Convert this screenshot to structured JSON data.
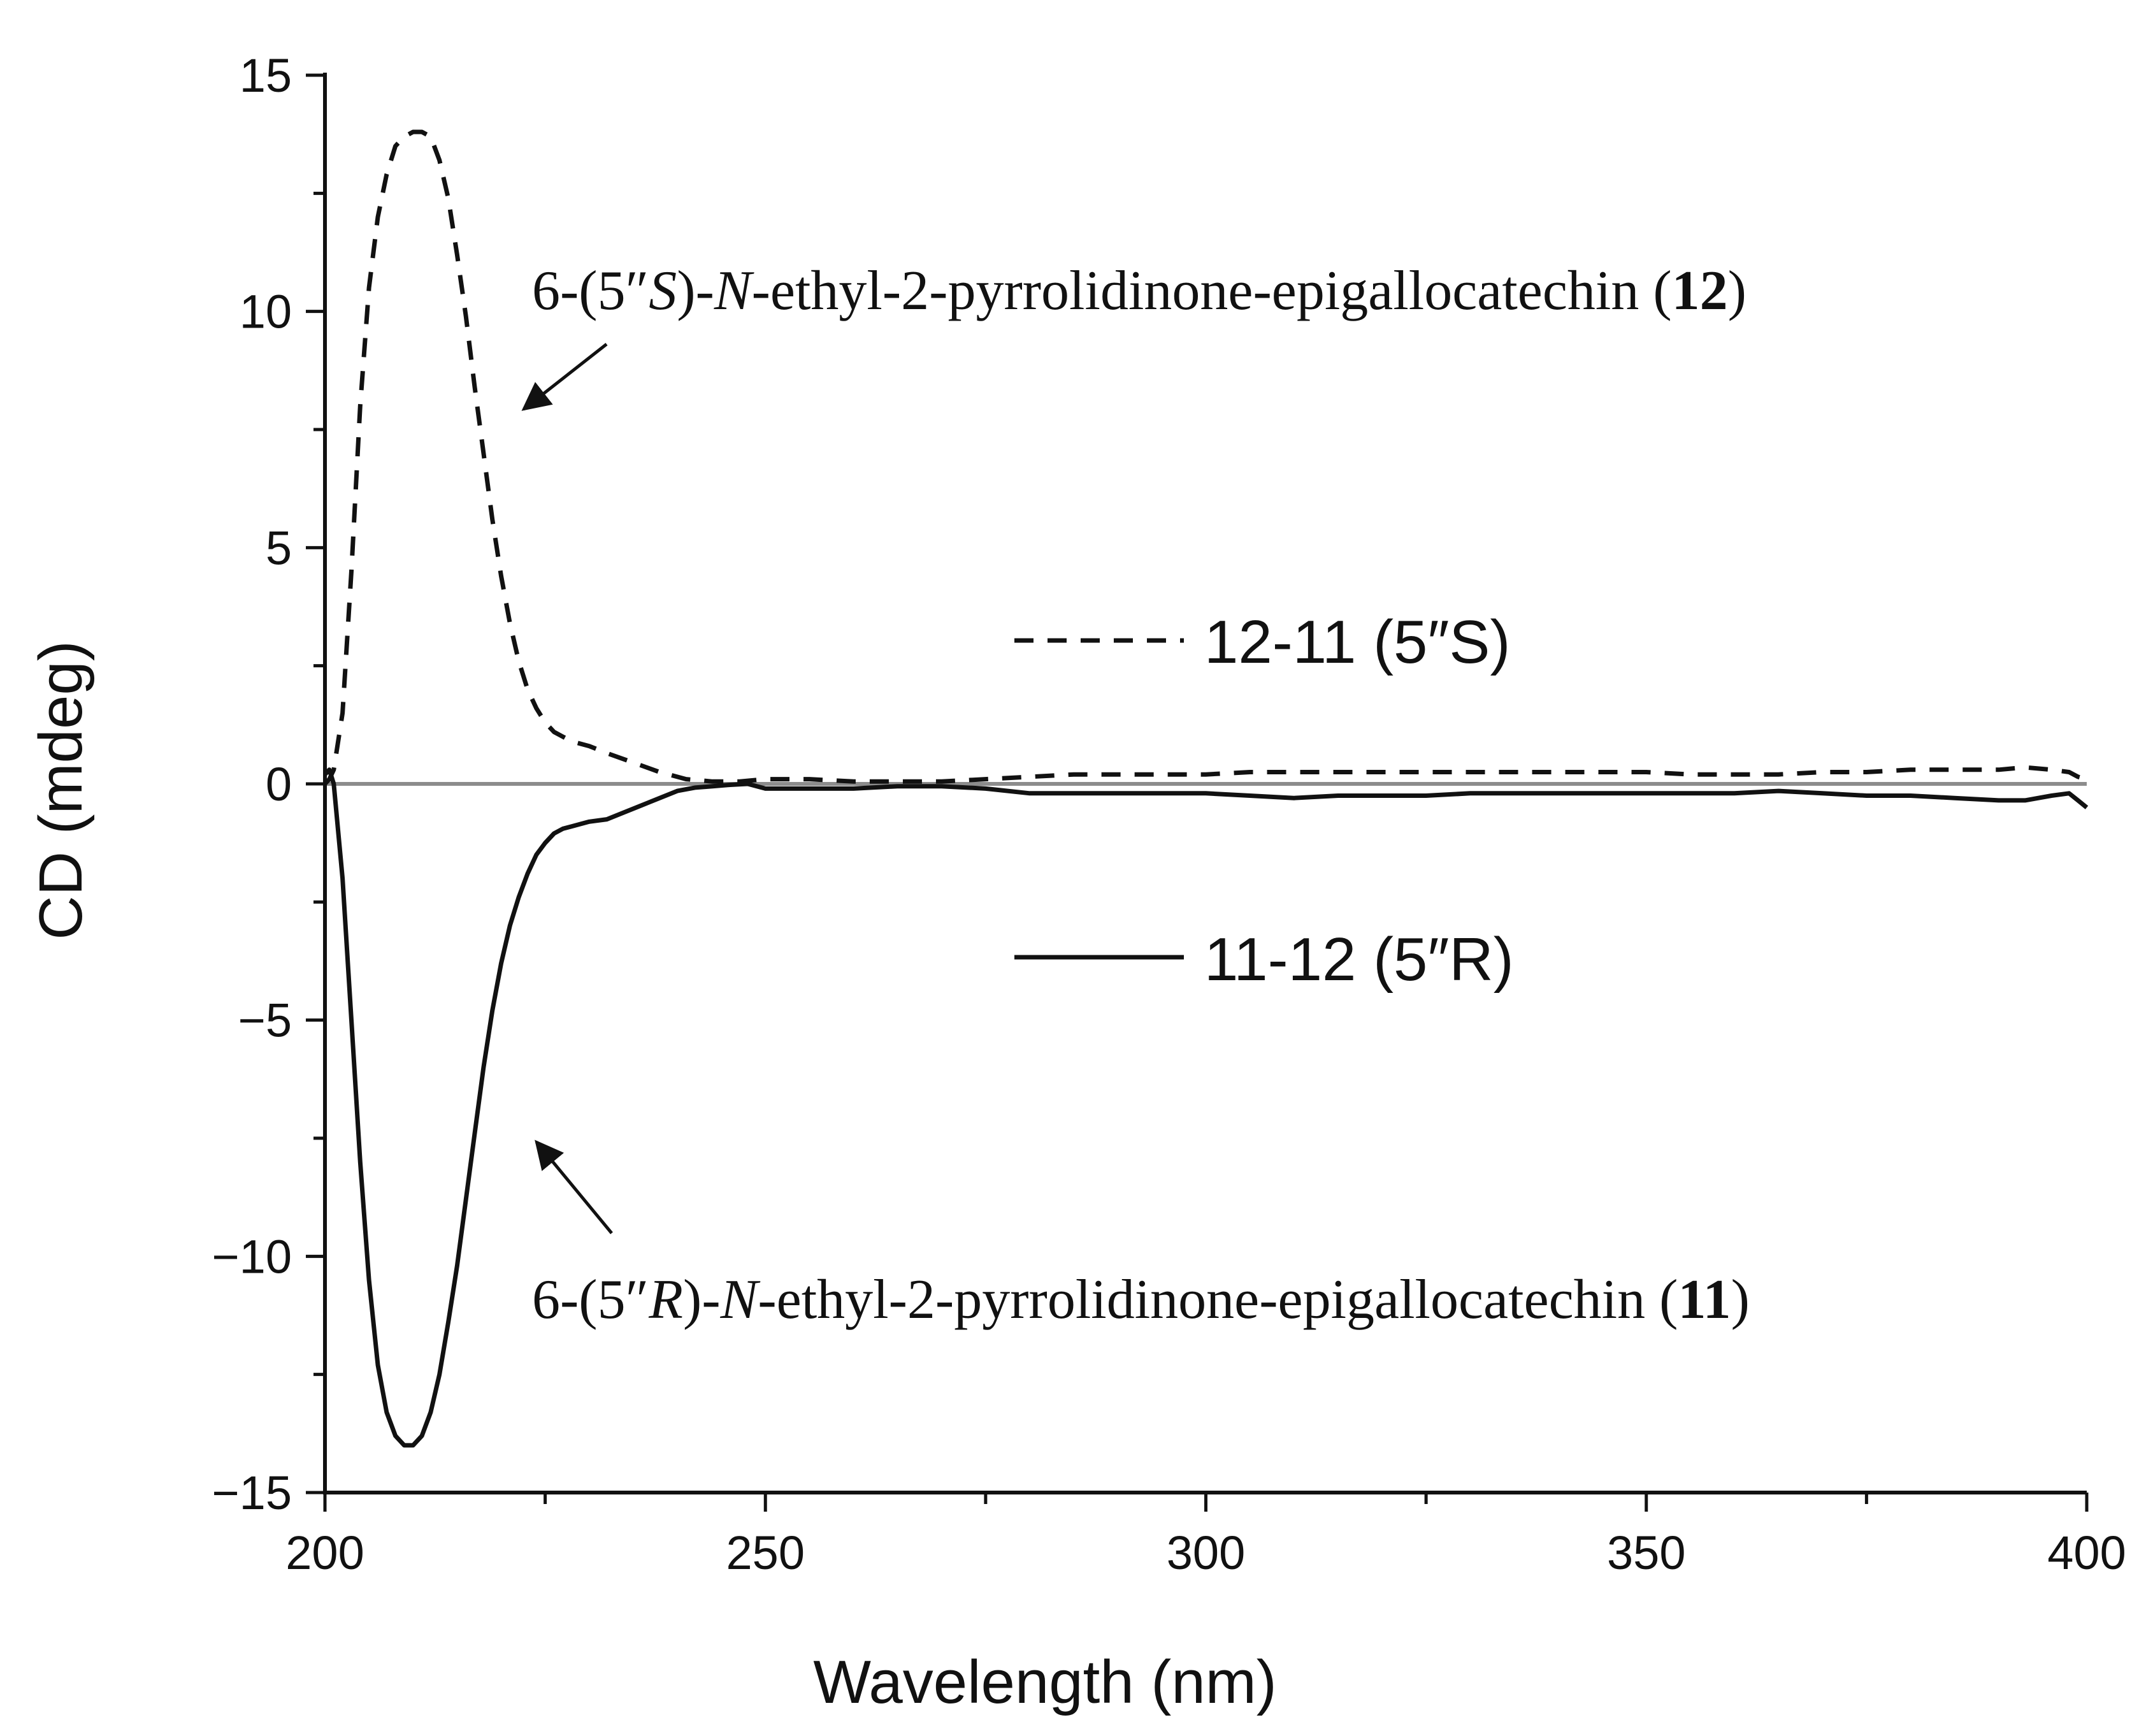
{
  "chart_data": {
    "type": "line",
    "title": "",
    "xlabel": "Wavelength (nm)",
    "ylabel": "CD (mdeg)",
    "xlim": [
      200,
      400
    ],
    "ylim": [
      -15,
      15
    ],
    "x_ticks": [
      "200",
      "250",
      "300",
      "350",
      "400"
    ],
    "y_ticks": [
      "15",
      "10",
      "5",
      "0",
      "−5",
      "−10",
      "−15"
    ],
    "grid": false,
    "legend_position": "center-right",
    "series": [
      {
        "name": "12-11 (5″S)",
        "style": "dashed",
        "color": "#111111",
        "x": [
          200,
          200.5,
          201,
          202,
          203,
          204,
          205,
          206,
          207,
          208,
          209,
          210,
          211,
          212,
          213,
          214,
          215,
          216,
          217,
          218,
          219,
          220,
          221,
          222,
          223,
          224,
          225,
          226,
          227,
          228,
          230,
          232,
          235,
          238,
          241,
          244,
          247,
          250,
          255,
          260,
          265,
          270,
          275,
          280,
          285,
          290,
          295,
          300,
          305,
          310,
          315,
          320,
          325,
          330,
          335,
          340,
          345,
          350,
          355,
          360,
          365,
          370,
          375,
          380,
          385,
          390,
          393,
          396,
          398,
          399,
          400
        ],
        "y": [
          0.0,
          0.1,
          0.3,
          1.5,
          4.5,
          8.0,
          10.5,
          12.0,
          12.9,
          13.5,
          13.7,
          13.8,
          13.8,
          13.7,
          13.2,
          12.4,
          11.2,
          9.9,
          8.4,
          7.0,
          5.6,
          4.4,
          3.4,
          2.6,
          2.0,
          1.6,
          1.3,
          1.1,
          1.0,
          0.9,
          0.8,
          0.65,
          0.45,
          0.25,
          0.1,
          0.05,
          0.05,
          0.1,
          0.1,
          0.05,
          0.05,
          0.05,
          0.1,
          0.15,
          0.2,
          0.2,
          0.2,
          0.2,
          0.25,
          0.25,
          0.25,
          0.25,
          0.25,
          0.25,
          0.25,
          0.25,
          0.25,
          0.25,
          0.2,
          0.2,
          0.2,
          0.25,
          0.25,
          0.3,
          0.3,
          0.3,
          0.35,
          0.3,
          0.25,
          0.15,
          0.1
        ]
      },
      {
        "name": "11-12 (5″R)",
        "style": "solid",
        "color": "#111111",
        "x": [
          200,
          200.5,
          201,
          202,
          203,
          204,
          205,
          206,
          207,
          208,
          209,
          210,
          211,
          212,
          213,
          214,
          215,
          216,
          217,
          218,
          219,
          220,
          221,
          222,
          223,
          224,
          225,
          226,
          227,
          228,
          229,
          230,
          232,
          234,
          236,
          238,
          240,
          242,
          244,
          246,
          248,
          250,
          255,
          260,
          265,
          270,
          275,
          280,
          285,
          290,
          295,
          300,
          305,
          310,
          315,
          320,
          325,
          330,
          335,
          340,
          345,
          350,
          355,
          360,
          365,
          370,
          375,
          380,
          385,
          390,
          393,
          396,
          398,
          399,
          400
        ],
        "y": [
          0.2,
          0.3,
          0.0,
          -2.0,
          -5.0,
          -8.0,
          -10.5,
          -12.3,
          -13.3,
          -13.8,
          -14.0,
          -14.0,
          -13.8,
          -13.3,
          -12.5,
          -11.4,
          -10.2,
          -8.8,
          -7.4,
          -6.0,
          -4.8,
          -3.8,
          -3.0,
          -2.4,
          -1.9,
          -1.5,
          -1.25,
          -1.05,
          -0.95,
          -0.9,
          -0.85,
          -0.8,
          -0.75,
          -0.6,
          -0.45,
          -0.3,
          -0.15,
          -0.08,
          -0.05,
          -0.02,
          0.0,
          -0.1,
          -0.1,
          -0.1,
          -0.05,
          -0.05,
          -0.1,
          -0.2,
          -0.2,
          -0.2,
          -0.2,
          -0.2,
          -0.25,
          -0.3,
          -0.25,
          -0.25,
          -0.25,
          -0.2,
          -0.2,
          -0.2,
          -0.2,
          -0.2,
          -0.2,
          -0.2,
          -0.15,
          -0.2,
          -0.25,
          -0.25,
          -0.3,
          -0.35,
          -0.35,
          -0.25,
          -0.2,
          -0.35,
          -0.5
        ]
      }
    ],
    "legend": [
      {
        "label": "12-11 (5″S)",
        "style": "dashed"
      },
      {
        "label": "11-12 (5″R)",
        "style": "solid"
      }
    ],
    "annotations": [
      {
        "target_series": "12-11 (5″S)",
        "prefix": "6-(5″",
        "stereo": "S",
        "mid": ")-",
        "n": "N",
        "rest": "-ethyl-2-pyrrolidinone-epigallocatechin (",
        "compound": "12",
        "close": ")"
      },
      {
        "target_series": "11-12 (5″R)",
        "prefix": "6-(5″",
        "stereo": "R",
        "mid": ")-",
        "n": "N",
        "rest": "-ethyl-2-pyrrolidinone-epigallocatechin (",
        "compound": "11",
        "close": ")"
      }
    ]
  }
}
